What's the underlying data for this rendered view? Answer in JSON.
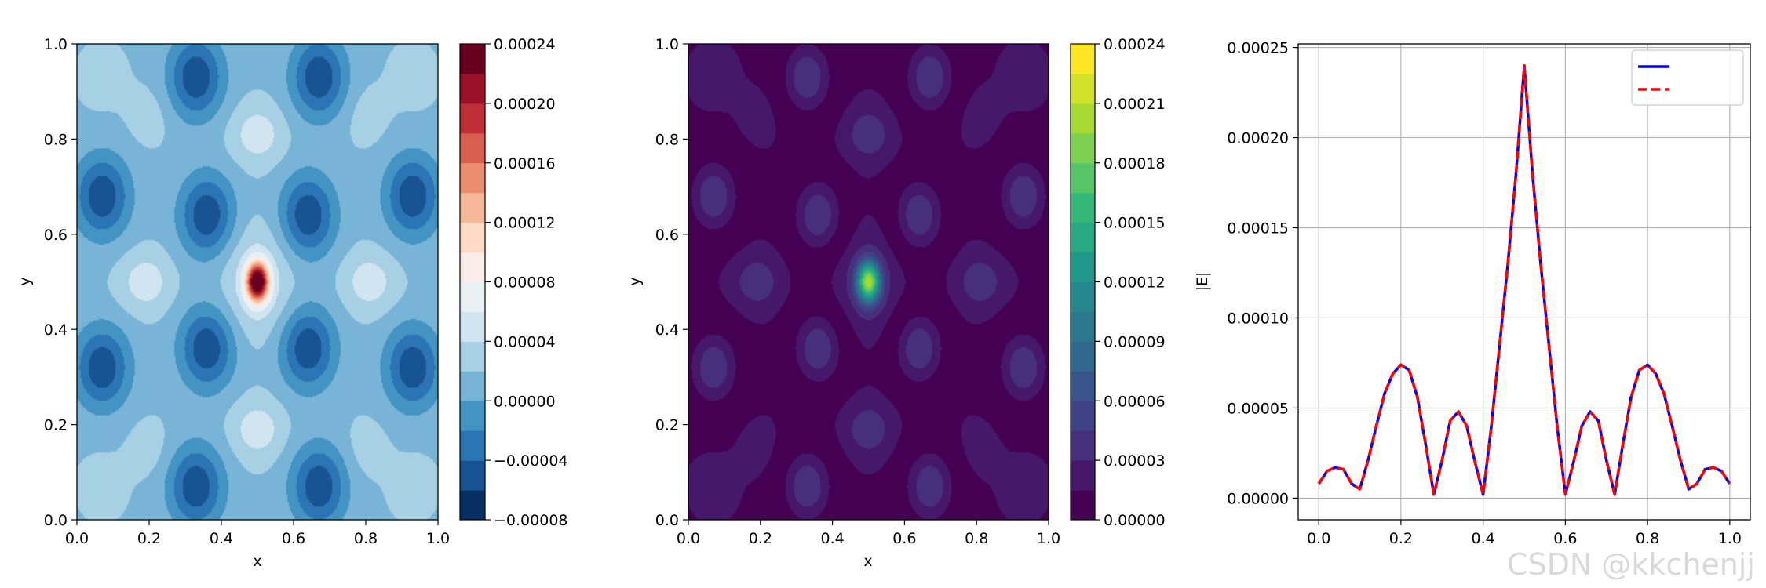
{
  "chart_data": [
    {
      "type": "heatmap",
      "title": "",
      "xlabel": "x",
      "ylabel": "y",
      "xlim": [
        0,
        1
      ],
      "ylim": [
        0,
        1
      ],
      "xticks": [
        "0.0",
        "0.2",
        "0.4",
        "0.6",
        "0.8",
        "1.0"
      ],
      "yticks": [
        "0.0",
        "0.2",
        "0.4",
        "0.6",
        "0.8",
        "1.0"
      ],
      "colormap": "RdBu_r",
      "colorbar": {
        "range": [
          -8e-05,
          0.00024
        ],
        "ticks": [
          "−0.00008",
          "−0.00004",
          "0.00000",
          "0.00004",
          "0.00008",
          "0.00012",
          "0.00016",
          "0.00020",
          "0.00024"
        ]
      },
      "field": {
        "peak": {
          "x": 0.5,
          "y": 0.5,
          "value": 0.00024
        },
        "lobes_min": [
          {
            "x": 0.33,
            "y": 0.93
          },
          {
            "x": 0.67,
            "y": 0.93
          },
          {
            "x": 0.33,
            "y": 0.07
          },
          {
            "x": 0.67,
            "y": 0.07
          },
          {
            "x": 0.07,
            "y": 0.68
          },
          {
            "x": 0.93,
            "y": 0.68
          },
          {
            "x": 0.07,
            "y": 0.32
          },
          {
            "x": 0.93,
            "y": 0.32
          },
          {
            "x": 0.36,
            "y": 0.64
          },
          {
            "x": 0.64,
            "y": 0.64
          },
          {
            "x": 0.36,
            "y": 0.36
          },
          {
            "x": 0.64,
            "y": 0.36
          }
        ],
        "lobes_max": [
          {
            "x": 0.5,
            "y": 0.81
          },
          {
            "x": 0.5,
            "y": 0.19
          },
          {
            "x": 0.19,
            "y": 0.5
          },
          {
            "x": 0.81,
            "y": 0.5
          }
        ]
      }
    },
    {
      "type": "heatmap",
      "title": "",
      "xlabel": "x",
      "ylabel": "y",
      "xlim": [
        0,
        1
      ],
      "ylim": [
        0,
        1
      ],
      "xticks": [
        "0.0",
        "0.2",
        "0.4",
        "0.6",
        "0.8",
        "1.0"
      ],
      "yticks": [
        "0.0",
        "0.2",
        "0.4",
        "0.6",
        "0.8",
        "1.0"
      ],
      "colormap": "viridis",
      "colorbar": {
        "range": [
          0,
          0.00024
        ],
        "ticks": [
          "0.00000",
          "0.00003",
          "0.00006",
          "0.00009",
          "0.00012",
          "0.00015",
          "0.00018",
          "0.00021",
          "0.00024"
        ]
      },
      "field": {
        "peak": {
          "x": 0.5,
          "y": 0.5,
          "value": 0.00024
        }
      }
    },
    {
      "type": "line",
      "title": "",
      "xlabel": "",
      "ylabel": "|E|",
      "xlim": [
        -0.05,
        1.05
      ],
      "ylim": [
        -1.2e-05,
        0.000252
      ],
      "grid": true,
      "legend_position": "top-right",
      "xticks": [
        "0.0",
        "0.2",
        "0.4",
        "0.6",
        "0.8",
        "1.0"
      ],
      "yticks": [
        "0.00000",
        "0.00005",
        "0.00010",
        "0.00015",
        "0.00020",
        "0.00025"
      ],
      "x": [
        0.0,
        0.02,
        0.04,
        0.06,
        0.08,
        0.1,
        0.12,
        0.14,
        0.16,
        0.18,
        0.2,
        0.22,
        0.24,
        0.26,
        0.28,
        0.3,
        0.32,
        0.34,
        0.36,
        0.38,
        0.4,
        0.42,
        0.44,
        0.46,
        0.48,
        0.5,
        0.52,
        0.54,
        0.56,
        0.58,
        0.6,
        0.62,
        0.64,
        0.66,
        0.68,
        0.7,
        0.72,
        0.74,
        0.76,
        0.78,
        0.8,
        0.82,
        0.84,
        0.86,
        0.88,
        0.9,
        0.92,
        0.94,
        0.96,
        0.98,
        1.0
      ],
      "series": [
        {
          "name": "",
          "color": "#0000ff",
          "style": "solid",
          "values": [
            8e-06,
            1.5e-05,
            1.7e-05,
            1.6e-05,
            8e-06,
            5e-06,
            2.1e-05,
            4e-05,
            5.8e-05,
            6.9e-05,
            7.4e-05,
            7.1e-05,
            5.6e-05,
            3e-05,
            2e-06,
            2.1e-05,
            4.3e-05,
            4.8e-05,
            4e-05,
            2e-05,
            2e-06,
            4e-05,
            8.5e-05,
            0.00013,
            0.00018,
            0.00024,
            0.00018,
            0.00013,
            8.5e-05,
            4e-05,
            2e-06,
            2e-05,
            4e-05,
            4.8e-05,
            4.3e-05,
            2.1e-05,
            2e-06,
            3e-05,
            5.6e-05,
            7.1e-05,
            7.4e-05,
            6.9e-05,
            5.8e-05,
            4e-05,
            2.1e-05,
            5e-06,
            8e-06,
            1.6e-05,
            1.7e-05,
            1.5e-05,
            8e-06
          ]
        },
        {
          "name": "",
          "color": "#ff0000",
          "style": "dashed",
          "values": [
            8e-06,
            1.5e-05,
            1.7e-05,
            1.6e-05,
            8e-06,
            5e-06,
            2.1e-05,
            4e-05,
            5.8e-05,
            6.9e-05,
            7.4e-05,
            7.1e-05,
            5.6e-05,
            3e-05,
            2e-06,
            2.1e-05,
            4.3e-05,
            4.8e-05,
            4e-05,
            2e-05,
            2e-06,
            4e-05,
            8.5e-05,
            0.00013,
            0.00018,
            0.00024,
            0.00018,
            0.00013,
            8.5e-05,
            4e-05,
            2e-06,
            2e-05,
            4e-05,
            4.8e-05,
            4.3e-05,
            2.1e-05,
            2e-06,
            3e-05,
            5.6e-05,
            7.1e-05,
            7.4e-05,
            6.9e-05,
            5.8e-05,
            4e-05,
            2.1e-05,
            5e-06,
            8e-06,
            1.6e-05,
            1.7e-05,
            1.5e-05,
            8e-06
          ]
        }
      ]
    }
  ],
  "watermark": "CSDN @kkchenjj"
}
